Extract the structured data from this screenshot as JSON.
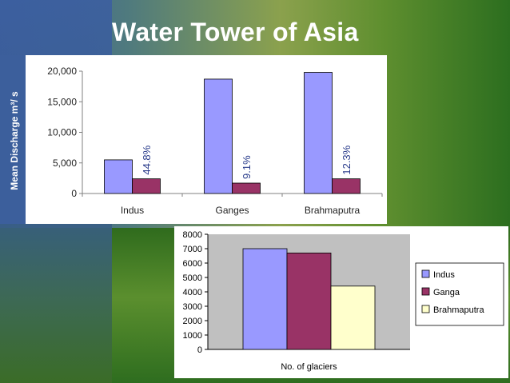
{
  "slide": {
    "title": "Water Tower of Asia"
  },
  "chart_data": [
    {
      "type": "bar",
      "title": "",
      "xlabel": "",
      "ylabel": "Mean Discharge m³/ s",
      "categories": [
        "Indus",
        "Ganges",
        "Brahmaputra"
      ],
      "series": [
        {
          "values": [
            5500,
            18700,
            19800
          ],
          "color": "#9999ff"
        },
        {
          "values": [
            2400,
            1700,
            2400
          ],
          "color": "#993366"
        }
      ],
      "bar_labels": [
        "44.8%",
        "9.1%",
        "12.3%"
      ],
      "yticks": [
        "0",
        "5,000",
        "10,000",
        "15,000",
        "20,000"
      ],
      "ylim": [
        0,
        20000
      ],
      "grid": false,
      "background": "#ffffff",
      "legend": "none"
    },
    {
      "type": "bar",
      "title": "",
      "xlabel": "No. of glaciers",
      "ylabel": "",
      "categories": [
        "No. of glaciers"
      ],
      "series": [
        {
          "name": "Indus",
          "values": [
            7000
          ],
          "color": "#9999ff"
        },
        {
          "name": "Ganga",
          "values": [
            6700
          ],
          "color": "#993366"
        },
        {
          "name": "Brahmaputra",
          "values": [
            4400
          ],
          "color": "#ffffcc"
        }
      ],
      "yticks": [
        "0",
        "1000",
        "2000",
        "3000",
        "4000",
        "5000",
        "6000",
        "7000",
        "8000"
      ],
      "ylim": [
        0,
        8000
      ],
      "grid": false,
      "plot_background": "#c0c0c0",
      "legend": "right"
    }
  ]
}
